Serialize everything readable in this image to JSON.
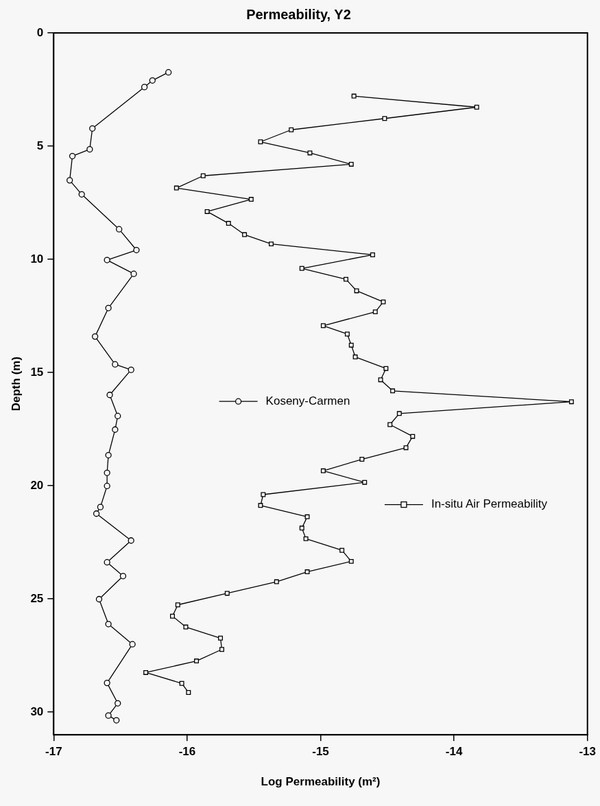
{
  "chart_data": {
    "type": "line",
    "title": "Permeability, Y2",
    "xlabel": "Log Permeability (m²)",
    "ylabel": "Depth (m)",
    "xlim": [
      -17,
      -13
    ],
    "xticks": [
      -17,
      -16,
      -15,
      -14,
      -13
    ],
    "ylim": [
      31,
      0
    ],
    "yticks": [
      0,
      5,
      10,
      15,
      20,
      25,
      30
    ],
    "grid": false,
    "legend": "right",
    "line_style": "solid",
    "series": [
      {
        "name": "Koseny-Carmen",
        "color": "#000000",
        "marker": "circle",
        "x": [
          -16.14,
          -16.26,
          -16.32,
          -16.71,
          -16.73,
          -16.86,
          -16.88,
          -16.79,
          -16.51,
          -16.38,
          -16.6,
          -16.4,
          -16.59,
          -16.69,
          -16.54,
          -16.42,
          -16.58,
          -16.52,
          -16.54,
          -16.59,
          -16.6,
          -16.6,
          -16.65,
          -16.68,
          -16.42,
          -16.6,
          -16.48,
          -16.66,
          -16.59,
          -16.41,
          -16.6,
          -16.52,
          -16.59,
          -16.53
        ],
        "values": [
          1.74,
          2.1,
          2.39,
          4.22,
          5.14,
          5.44,
          6.51,
          7.13,
          8.67,
          9.59,
          10.03,
          10.64,
          12.15,
          13.41,
          14.64,
          14.88,
          15.99,
          16.92,
          17.52,
          18.65,
          19.43,
          20.01,
          20.94,
          21.23,
          22.42,
          23.38,
          23.99,
          25.01,
          26.11,
          27.0,
          28.71,
          29.61,
          30.15,
          30.36
        ]
      },
      {
        "name": "In-situ Air Permeability",
        "color": "#000000",
        "marker": "square",
        "x": [
          -14.75,
          -13.83,
          -14.52,
          -15.22,
          -15.45,
          -15.08,
          -14.77,
          -15.88,
          -16.08,
          -15.52,
          -15.85,
          -15.69,
          -15.57,
          -15.37,
          -14.61,
          -15.14,
          -14.81,
          -14.73,
          -14.53,
          -14.59,
          -14.98,
          -14.8,
          -14.77,
          -14.74,
          -14.51,
          -14.55,
          -14.46,
          -13.12,
          -14.41,
          -14.48,
          -14.31,
          -14.36,
          -14.69,
          -14.98,
          -14.67,
          -15.43,
          -15.45,
          -15.1,
          -15.14,
          -15.11,
          -14.84,
          -14.77,
          -15.1,
          -15.33,
          -15.7,
          -16.07,
          -16.11,
          -16.01,
          -15.75,
          -15.74,
          -15.93,
          -16.31,
          -16.04,
          -15.99
        ],
        "values": [
          2.79,
          3.28,
          3.78,
          4.28,
          4.81,
          5.3,
          5.8,
          6.31,
          6.85,
          7.35,
          7.89,
          8.41,
          8.91,
          9.32,
          9.8,
          10.4,
          10.88,
          11.39,
          11.88,
          12.32,
          12.93,
          13.3,
          13.79,
          14.31,
          14.82,
          15.32,
          15.81,
          16.29,
          16.81,
          17.3,
          17.82,
          18.32,
          18.83,
          19.34,
          19.85,
          20.39,
          20.87,
          21.37,
          21.87,
          22.34,
          22.85,
          23.34,
          23.8,
          24.24,
          24.75,
          25.26,
          25.76,
          26.24,
          26.73,
          27.23,
          27.74,
          28.25,
          28.73,
          29.13
        ]
      }
    ]
  }
}
